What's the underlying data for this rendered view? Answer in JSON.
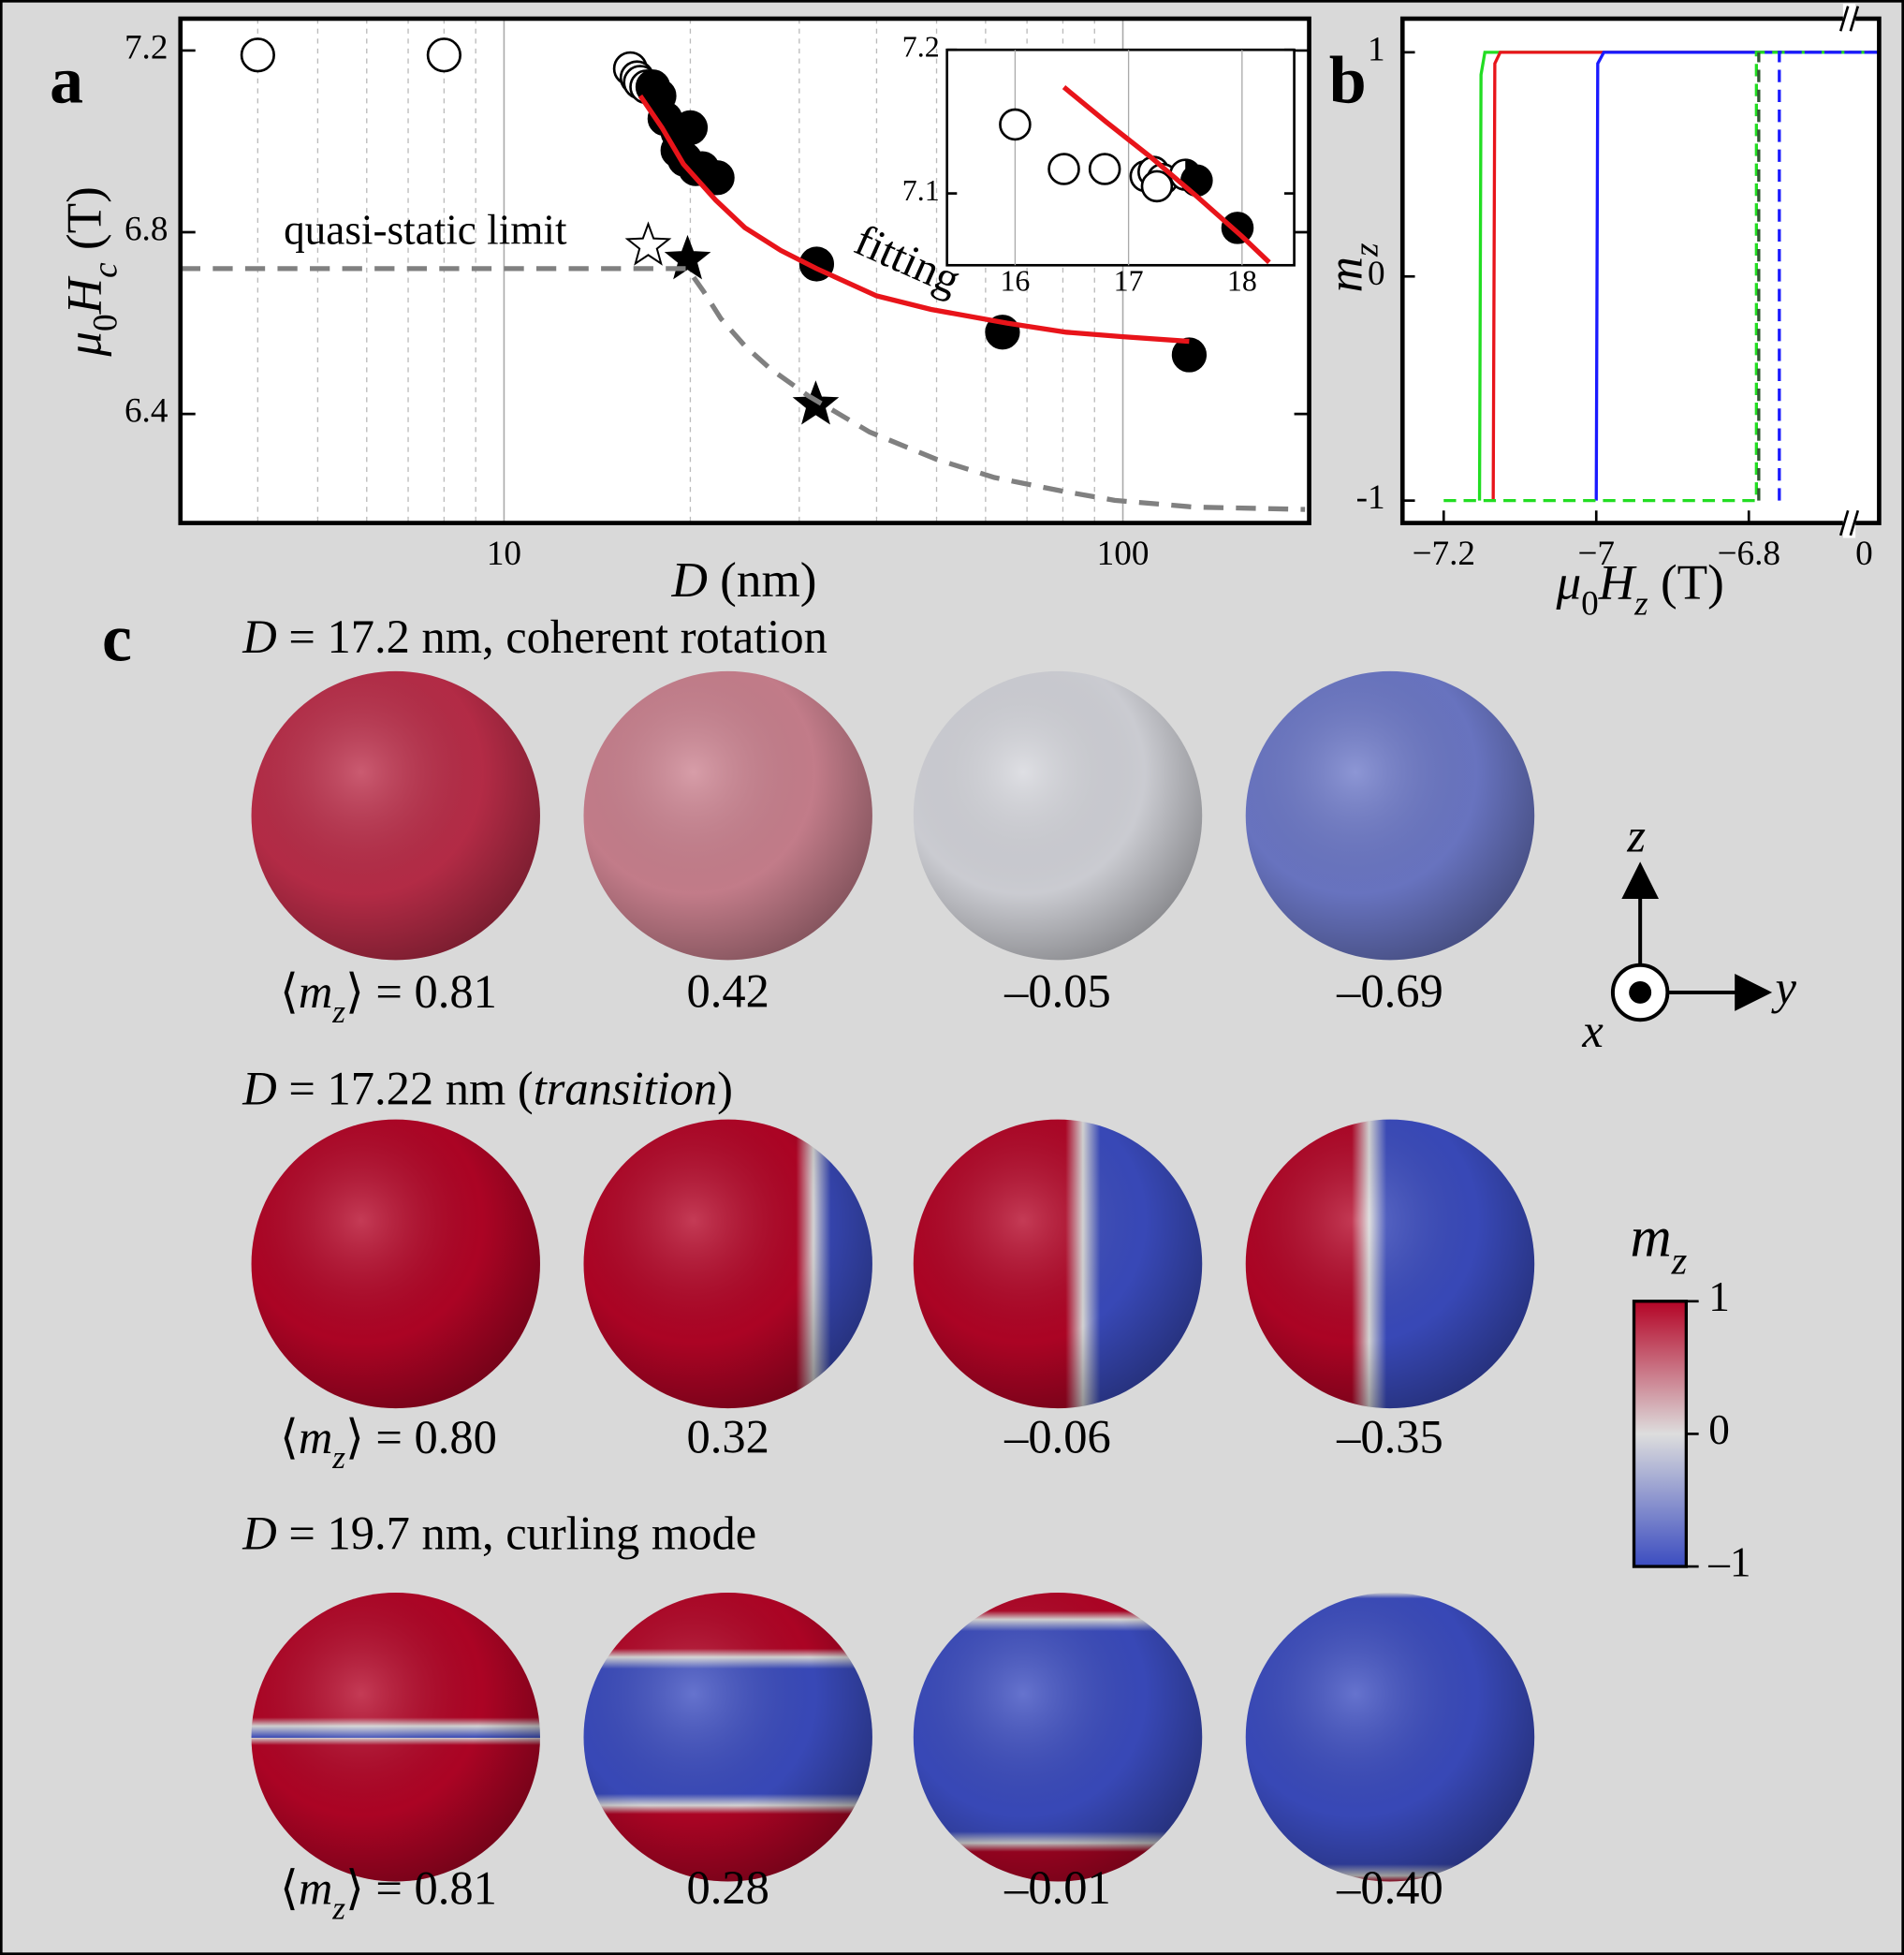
{
  "chart_data": [
    {
      "type": "scatter",
      "panel_label": "a",
      "xlabel": [
        "D",
        " (nm)"
      ],
      "ylabel": [
        "μ",
        "0",
        "H",
        "c",
        " (T)"
      ],
      "xscale": "log",
      "xlim": [
        3,
        200
      ],
      "ylim": [
        6.16,
        7.27
      ],
      "xticks": [
        10,
        100
      ],
      "minor_xticks": [
        4,
        5,
        6,
        7,
        8,
        9,
        20,
        30,
        40,
        50,
        60,
        70,
        80,
        90
      ],
      "yticks": [
        6.4,
        6.8,
        7.2
      ],
      "grid": true,
      "series": [
        {
          "marker": "open",
          "color": "#000000",
          "x": [
            4,
            8,
            16.0,
            16.4,
            16.6,
            17.0
          ],
          "values": [
            7.19,
            7.19,
            7.16,
            7.14,
            7.13,
            7.12
          ]
        },
        {
          "marker": "filled",
          "color": "#000000",
          "x": [
            17.4,
            17.8,
            18.2,
            19.1,
            20.0,
            19.1,
            19.6,
            20.4,
            20.9,
            22.1,
            32.0,
            63.9,
            128
          ],
          "values": [
            7.12,
            7.1,
            7.05,
            7.02,
            7.03,
            6.98,
            6.96,
            6.94,
            6.94,
            6.92,
            6.73,
            6.58,
            6.53
          ]
        },
        {
          "marker": "open-star",
          "color": "#000000",
          "x": [
            17.1
          ],
          "values": [
            6.77
          ]
        },
        {
          "marker": "filled-star",
          "color": "#000000",
          "x": [
            19.8,
            31.9
          ],
          "values": [
            6.74,
            6.42
          ]
        },
        {
          "marker": "line",
          "color": "#e8141a",
          "x": [
            16.6,
            18,
            19.5,
            22,
            24.5,
            28,
            32,
            40,
            49,
            65,
            81,
            100,
            128
          ],
          "values": [
            7.1,
            7.03,
            6.95,
            6.87,
            6.81,
            6.76,
            6.72,
            6.66,
            6.63,
            6.6,
            6.58,
            6.57,
            6.56
          ]
        },
        {
          "marker": "dashed",
          "color": "#808080",
          "x": [
            3,
            19.8,
            21,
            22.4,
            24.5,
            26.9,
            31,
            39,
            50,
            62,
            80,
            97,
            130,
            197
          ],
          "values": [
            6.72,
            6.72,
            6.67,
            6.61,
            6.55,
            6.5,
            6.44,
            6.36,
            6.3,
            6.26,
            6.23,
            6.21,
            6.195,
            6.19
          ]
        }
      ],
      "annotations": [
        {
          "text": "quasi-static limit",
          "color": "#8a8a8a"
        },
        {
          "text": "fitting",
          "color": "#e8141a"
        }
      ]
    },
    {
      "type": "scatter",
      "xlim": [
        15.4,
        18.46
      ],
      "ylim": [
        7.05,
        7.2
      ],
      "xticks": [
        16,
        17,
        18
      ],
      "yticks": [
        7.1,
        7.2
      ],
      "grid": true,
      "series": [
        {
          "marker": "open",
          "color": "#000000",
          "x": [
            16.0,
            16.43,
            16.79,
            17.15,
            17.22,
            17.3,
            17.25
          ],
          "values": [
            7.148,
            7.117,
            7.117,
            7.112,
            7.115,
            7.11,
            7.105
          ]
        },
        {
          "marker": "half",
          "color": "#000000",
          "x": [
            17.5
          ],
          "values": [
            7.113
          ]
        },
        {
          "marker": "filled",
          "color": "#000000",
          "x": [
            17.6,
            17.96
          ],
          "values": [
            7.109,
            7.076
          ]
        },
        {
          "marker": "line",
          "color": "#e8141a",
          "x": [
            16.43,
            16.8,
            17.2,
            17.6,
            18.0,
            18.24
          ],
          "values": [
            7.174,
            7.15,
            7.125,
            7.098,
            7.07,
            7.052
          ]
        }
      ]
    },
    {
      "type": "line",
      "panel_label": "b",
      "xlabel": [
        "μ",
        "0",
        "H",
        "z",
        " (T)"
      ],
      "ylabel": [
        "m",
        "z"
      ],
      "xlim": [
        -7.254,
        0
      ],
      "xbreak": [
        -6.67,
        -0.02
      ],
      "ylim": [
        -1.1,
        1.15
      ],
      "xticks": [
        {
          "value": -7.2,
          "label": "−7.2"
        },
        {
          "value": -7,
          "label": "−7"
        },
        {
          "value": -6.8,
          "label": "−6.8"
        },
        0
      ],
      "yticks": [
        -1,
        0,
        1
      ],
      "series": [
        {
          "color": "#22dd22",
          "dash": false,
          "x": [
            -7.153,
            -7.151,
            -7.146,
            -7.13,
            0
          ],
          "values": [
            -1,
            0.9,
            1,
            1,
            1
          ]
        },
        {
          "color": "#e8141a",
          "dash": false,
          "x": [
            -7.135,
            -7.133,
            -7.126,
            0
          ],
          "values": [
            -1,
            0.95,
            1,
            1
          ]
        },
        {
          "color": "#1a1aff",
          "dash": false,
          "x": [
            -7.0,
            -6.998,
            -6.99,
            0
          ],
          "values": [
            -1,
            0.95,
            1,
            1
          ]
        },
        {
          "color": "#22dd22",
          "dash": true,
          "x": [
            -7.2,
            -6.79,
            -6.79,
            0
          ],
          "values": [
            -1,
            -1,
            1,
            1
          ]
        },
        {
          "color": "#335533",
          "dash": true,
          "x": [
            -6.787,
            -6.787
          ],
          "values": [
            -1,
            1
          ]
        },
        {
          "color": "#1a1aff",
          "dash": true,
          "x": [
            -6.76,
            -6.76,
            0
          ],
          "values": [
            -1,
            1,
            1
          ]
        }
      ]
    },
    {
      "type": "colorbar",
      "title": [
        "m",
        "z"
      ],
      "ylim": [
        -1,
        1
      ],
      "yticks": [
        1,
        0,
        {
          "value": -1,
          "label": "–1"
        }
      ],
      "colors": [
        "#3b4cc0",
        "#dddddd",
        "#b40426"
      ]
    }
  ],
  "panel_c": {
    "panel_label": "c",
    "avg_label": [
      "⟨",
      "m",
      "z",
      "⟩ = "
    ],
    "axes": {
      "z": "z",
      "y": "y",
      "x": "x"
    },
    "rows": [
      {
        "title": [
          "D",
          " = 17.2 nm, coherent rotation"
        ],
        "italic": [
          0
        ],
        "pattern": "uniform",
        "values": [
          0.81,
          0.42,
          -0.05,
          -0.69
        ],
        "value_labels": [
          "0.81",
          "0.42",
          "–0.05",
          "–0.69"
        ]
      },
      {
        "title": [
          "D",
          " = 17.22 nm (",
          "transition",
          ")"
        ],
        "italic": [
          0,
          2
        ],
        "pattern": "domain-wall",
        "values": [
          0.8,
          0.32,
          -0.06,
          -0.35
        ],
        "value_labels": [
          "0.80",
          "0.32",
          "–0.06",
          "–0.35"
        ]
      },
      {
        "title": [
          "D",
          " = 19.7 nm, curling mode"
        ],
        "italic": [
          0
        ],
        "pattern": "curling",
        "values": [
          0.81,
          0.28,
          -0.01,
          -0.4
        ],
        "value_labels": [
          "0.81",
          "0.28",
          "–0.01",
          "–0.40"
        ]
      }
    ]
  }
}
